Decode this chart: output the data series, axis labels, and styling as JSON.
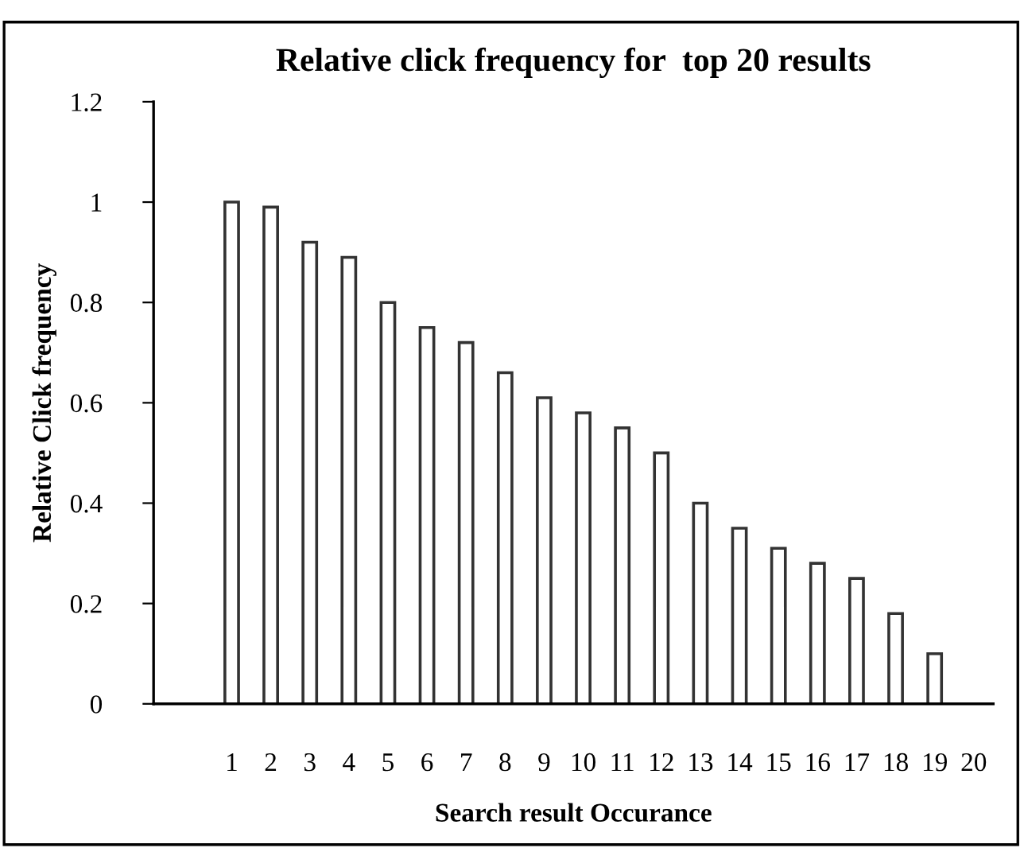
{
  "chart_data": {
    "type": "bar",
    "title": "Relative click frequency for  top 20 results",
    "xlabel": "Search result Occurance",
    "ylabel": "Relative Click frequency",
    "categories": [
      "1",
      "2",
      "3",
      "4",
      "5",
      "6",
      "7",
      "8",
      "9",
      "10",
      "11",
      "12",
      "13",
      "14",
      "15",
      "16",
      "17",
      "18",
      "19",
      "20"
    ],
    "values": [
      1,
      0.99,
      0.92,
      0.89,
      0.8,
      0.75,
      0.72,
      0.66,
      0.61,
      0.58,
      0.55,
      0.5,
      0.4,
      0.35,
      0.31,
      0.28,
      0.25,
      0.18,
      0.1,
      null
    ],
    "color": "#ffffff",
    "ylim": [
      0,
      1.2
    ],
    "yticks": [
      0,
      0.2,
      0.4,
      0.6,
      0.8,
      1,
      1.2
    ],
    "grid": false,
    "legend": false
  }
}
